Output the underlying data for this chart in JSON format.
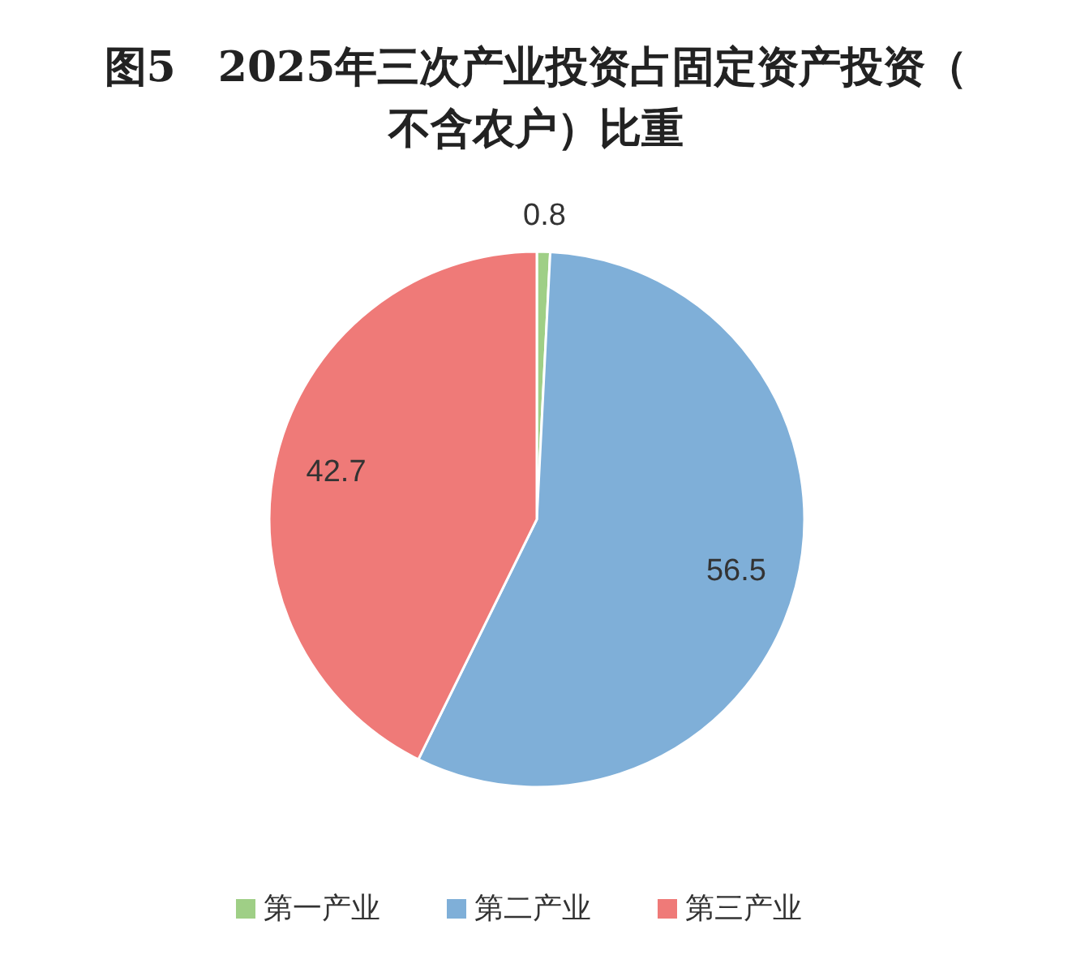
{
  "chart_data": {
    "type": "pie",
    "title": "图5　2025年三次产业投资占固定资产投资（不含农户）比重",
    "categories": [
      "第一产业",
      "第二产业",
      "第三产业"
    ],
    "values": [
      0.8,
      56.5,
      42.7
    ],
    "colors": [
      "#9fcf86",
      "#7fafd8",
      "#ef7a78"
    ],
    "data_labels": true,
    "legend": "bottom"
  }
}
